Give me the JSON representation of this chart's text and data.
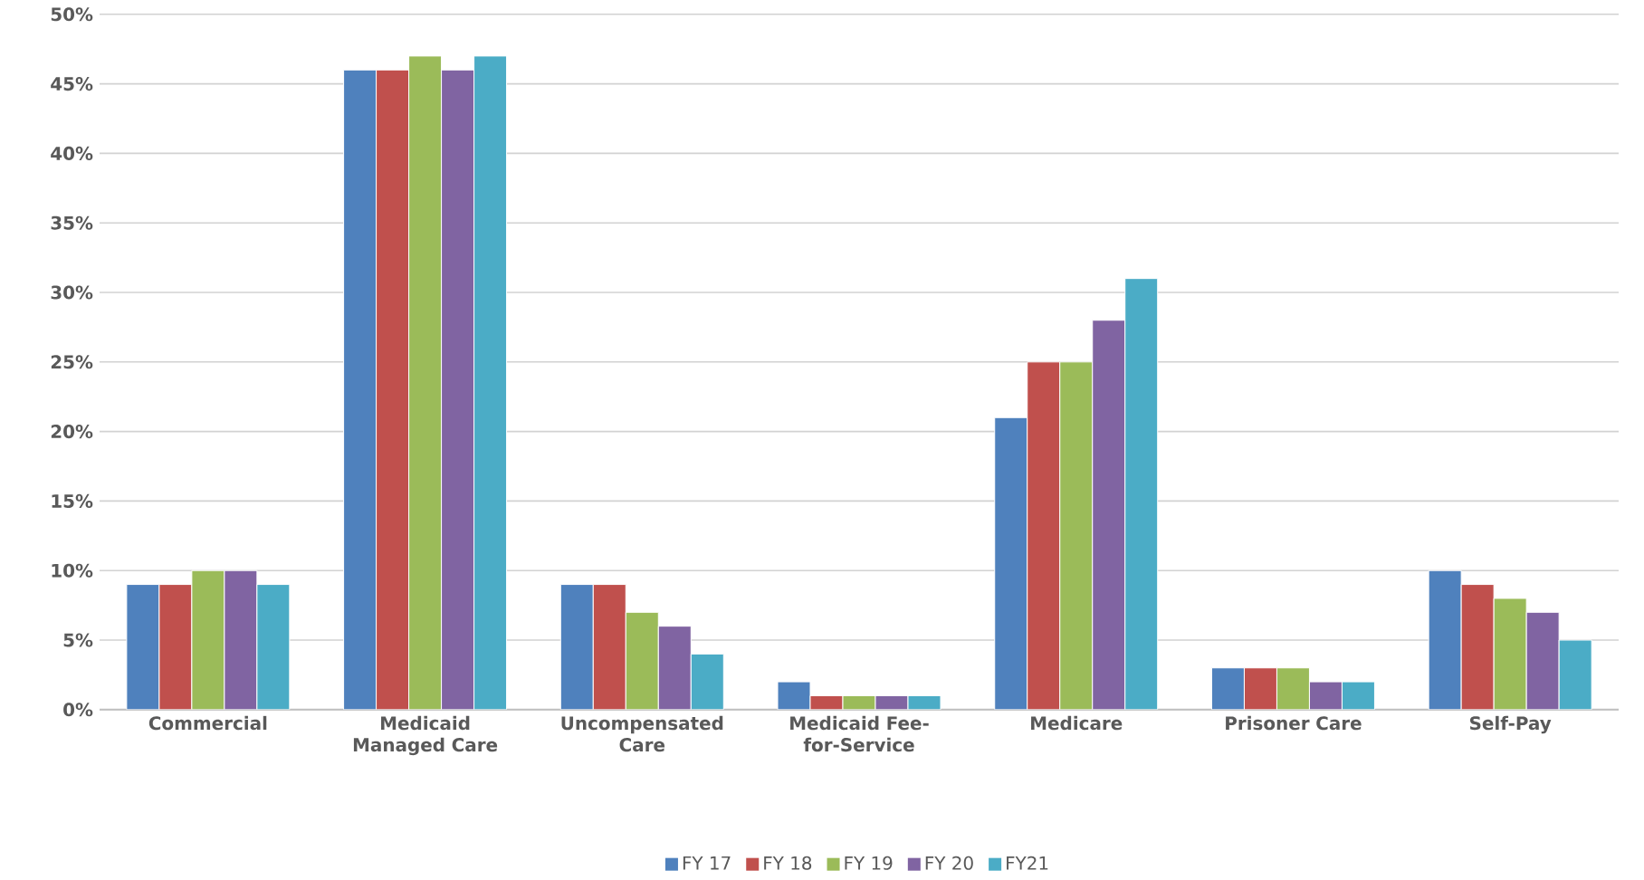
{
  "chart_data": {
    "type": "bar",
    "categories": [
      "Commercial",
      "Medicaid Managed Care",
      "Uncompensated Care",
      "Medicaid Fee-for-Service",
      "Medicare",
      "Prisoner Care",
      "Self-Pay"
    ],
    "series": [
      {
        "name": "FY 17",
        "color": "#4f81bd",
        "values": [
          9,
          46,
          9,
          2,
          21,
          3,
          10
        ]
      },
      {
        "name": "FY 18",
        "color": "#c0504d",
        "values": [
          9,
          46,
          9,
          1,
          25,
          3,
          9
        ]
      },
      {
        "name": "FY 19",
        "color": "#9bbb59",
        "values": [
          10,
          47,
          7,
          1,
          25,
          3,
          8
        ]
      },
      {
        "name": "FY 20",
        "color": "#8064a2",
        "values": [
          10,
          46,
          6,
          1,
          28,
          2,
          7
        ]
      },
      {
        "name": "FY21",
        "color": "#4bacc6",
        "values": [
          9,
          47,
          4,
          1,
          31,
          2,
          5
        ]
      }
    ],
    "ylim": [
      0,
      50
    ],
    "yticks": [
      {
        "value": 0,
        "label": "0%"
      },
      {
        "value": 5,
        "label": "5%"
      },
      {
        "value": 10,
        "label": "10%"
      },
      {
        "value": 15,
        "label": "15%"
      },
      {
        "value": 20,
        "label": "20%"
      },
      {
        "value": 25,
        "label": "25%"
      },
      {
        "value": 30,
        "label": "30%"
      },
      {
        "value": 35,
        "label": "35%"
      },
      {
        "value": 40,
        "label": "40%"
      },
      {
        "value": 45,
        "label": "45%"
      },
      {
        "value": 50,
        "label": "50%"
      }
    ],
    "grid": "y",
    "legend": "bottom"
  }
}
